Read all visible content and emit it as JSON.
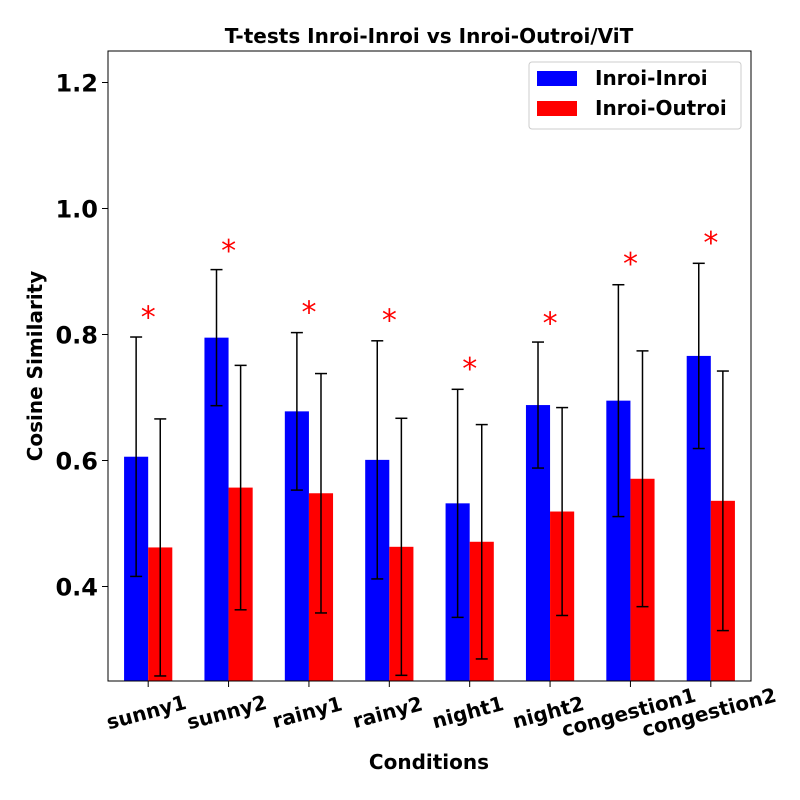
{
  "chart_data": {
    "type": "bar",
    "title": "T-tests Inroi-Inroi vs Inroi-Outroi/ViT",
    "xlabel": "Conditions",
    "ylabel": "Cosine Similarity",
    "ylim": [
      0.25,
      1.25
    ],
    "yticks": [
      "0.4",
      "0.6",
      "0.8",
      "1.0",
      "1.2"
    ],
    "ytick_values": [
      0.4,
      0.6,
      0.8,
      1.0,
      1.2
    ],
    "categories": [
      "sunny1",
      "sunny2",
      "rainy1",
      "rainy2",
      "night1",
      "night2",
      "congestion1",
      "congestion2"
    ],
    "series": [
      {
        "name": "Inroi-Inroi",
        "color": "#0000ff",
        "values": [
          0.606,
          0.795,
          0.678,
          0.601,
          0.532,
          0.688,
          0.695,
          0.766
        ],
        "errors": [
          0.19,
          0.108,
          0.125,
          0.189,
          0.181,
          0.1,
          0.184,
          0.147
        ]
      },
      {
        "name": "Inroi-Outroi",
        "color": "#ff0000",
        "values": [
          0.462,
          0.557,
          0.548,
          0.463,
          0.471,
          0.519,
          0.571,
          0.536
        ],
        "errors": [
          0.204,
          0.194,
          0.19,
          0.204,
          0.186,
          0.165,
          0.203,
          0.206
        ]
      }
    ],
    "significance": {
      "marker": "*",
      "color": "#ff0000",
      "values": [
        0.84,
        0.945,
        0.848,
        0.835,
        0.758,
        0.83,
        0.925,
        0.958
      ]
    },
    "legend_position": "top-right",
    "grid": false
  }
}
